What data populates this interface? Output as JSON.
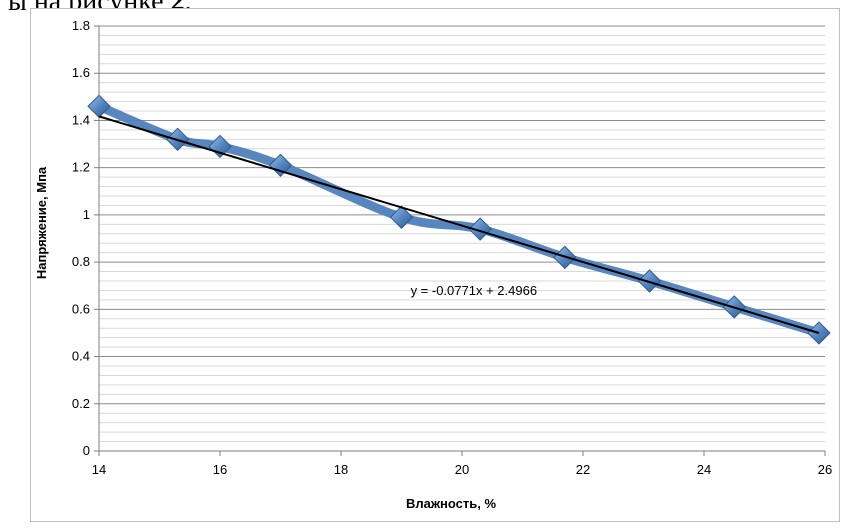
{
  "document": {
    "caption_fragment": "ы на рисунке",
    "caption_number": "2",
    "caption_end": "."
  },
  "chart_data": {
    "type": "line",
    "xlabel": "Влажность, %",
    "ylabel": "Напряжение, Мпа",
    "xlim": [
      14,
      26
    ],
    "ylim": [
      0,
      1.8
    ],
    "x_ticks": [
      "14",
      "16",
      "18",
      "20",
      "22",
      "24",
      "26"
    ],
    "y_ticks": [
      "0",
      "0.2",
      "0.4",
      "0.6",
      "0.8",
      "1",
      "1.2",
      "1.4",
      "1.6",
      "1.8"
    ],
    "grid": true,
    "series": [
      {
        "x": [
          14.0,
          15.3,
          16.0,
          17.0,
          19.0,
          20.3,
          21.7,
          23.1,
          24.5,
          25.9
        ],
        "y": [
          1.46,
          1.32,
          1.29,
          1.21,
          0.99,
          0.94,
          0.82,
          0.72,
          0.61,
          0.5
        ],
        "color": "#4f81bd"
      }
    ],
    "trendline": {
      "slope": -0.0771,
      "intercept": 2.4966,
      "label": "y = -0.0771x + 2.4966",
      "color": "#000000"
    }
  }
}
